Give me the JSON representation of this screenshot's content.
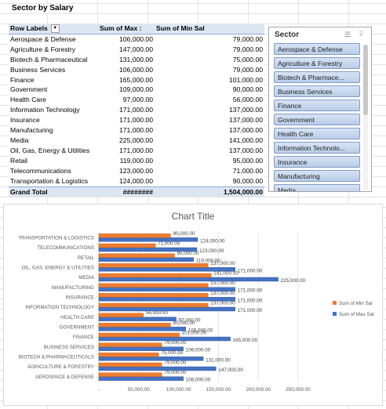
{
  "sheet": {
    "title": "Sector by Salary",
    "pivot": {
      "headers": [
        "Row Labels",
        "Sum of Max :",
        "Sum of Min Sal"
      ],
      "rows": [
        {
          "label": "Aerospace & Defense",
          "max": "106,000.00",
          "min": "79,000.00"
        },
        {
          "label": "Agriculture & Forestry",
          "max": "147,000.00",
          "min": "79,000.00"
        },
        {
          "label": "Biotech & Pharmaceutical",
          "max": "131,000.00",
          "min": "75,000.00"
        },
        {
          "label": "Business Services",
          "max": "106,000.00",
          "min": "79,000.00"
        },
        {
          "label": "Finance",
          "max": "165,000.00",
          "min": "101,000.00"
        },
        {
          "label": "Government",
          "max": "109,000.00",
          "min": "90,000.00"
        },
        {
          "label": "Health Care",
          "max": "97,000.00",
          "min": "56,000.00"
        },
        {
          "label": "Information Technology",
          "max": "171,000.00",
          "min": "137,000.00"
        },
        {
          "label": "Insurance",
          "max": "171,000.00",
          "min": "137,000.00"
        },
        {
          "label": "Manufacturing",
          "max": "171,000.00",
          "min": "137,000.00"
        },
        {
          "label": "Media",
          "max": "225,000.00",
          "min": "141,000.00"
        },
        {
          "label": "Oil, Gas, Energy & Utilities",
          "max": "171,000.00",
          "min": "137,000.00"
        },
        {
          "label": "Retail",
          "max": "119,000.00",
          "min": "95,000.00"
        },
        {
          "label": "Telecommunications",
          "max": "123,000.00",
          "min": "71,000.00"
        },
        {
          "label": "Transportation & Logistics",
          "max": "124,000.00",
          "min": "90,000.00"
        }
      ],
      "total": {
        "label": "Grand Total",
        "max": "########",
        "min": "1,504,000.00"
      }
    }
  },
  "slicer": {
    "title": "Sector",
    "items": [
      "Aerospace & Defense",
      "Agriculture & Forestry",
      "Biotech & Pharmace...",
      "Business Services",
      "Finance",
      "Government",
      "Health Care",
      "Information Technolo...",
      "Insurance",
      "Manufacturing",
      "Media"
    ]
  },
  "chart_data": {
    "type": "bar",
    "orientation": "horizontal",
    "title": "Chart Title",
    "categories": [
      "AEROSPACE & DEFENSE",
      "AGRICULTURE & FORESTRY",
      "BIOTECH & PHARMACEUTICALS",
      "BUSINESS SERVICES",
      "FINANCE",
      "GOVERNMENT",
      "HEALTH CARE",
      "INFORMATION TECHNOLOGY",
      "INSURANCE",
      "MANUFACTURING",
      "MEDIA",
      "OIL, GAS, ENERGY & UTILITIES",
      "RETAIL",
      "TELECOMMUNICATIONS",
      "TRANSPORTATION & LOGISTICS"
    ],
    "series": [
      {
        "name": "Sum of Max Sal",
        "color": "#4472c4",
        "values": [
          106000,
          147000,
          131000,
          106000,
          165000,
          109000,
          97000,
          171000,
          171000,
          171000,
          225000,
          171000,
          119000,
          123000,
          124000
        ],
        "labels": [
          "106,000.00",
          "147,000.00",
          "131,000.00",
          "106,000.00",
          "165,000.00",
          "109,000.00",
          "97,000.00",
          "171,000.00",
          "171,000.00",
          "171,000.00",
          "225,000.00",
          "171,000.00",
          "119,000.00",
          "123,000.00",
          "124,000.00"
        ]
      },
      {
        "name": "Sum of Min Sal",
        "color": "#ed7d31",
        "values": [
          79000,
          79000,
          75000,
          79000,
          101000,
          90000,
          56000,
          137000,
          137000,
          137000,
          141000,
          137000,
          95000,
          71000,
          90000
        ],
        "labels": [
          "79,000.00",
          "79,000.00",
          "75,000.00",
          "79,000.00",
          "101,000.00",
          "90,000.00",
          "56,000.00",
          "137,000.00",
          "137,000.00",
          "137,000.00",
          "141,000.00",
          "137,000.00",
          "95,000.00",
          "71,000.00",
          "90,000.00"
        ]
      }
    ],
    "xticks": [
      "-",
      "50,000.00",
      "100,000.00",
      "150,000.00",
      "200,000.00",
      "250,000.00"
    ],
    "xlim": [
      0,
      250000
    ],
    "legend": "right"
  }
}
